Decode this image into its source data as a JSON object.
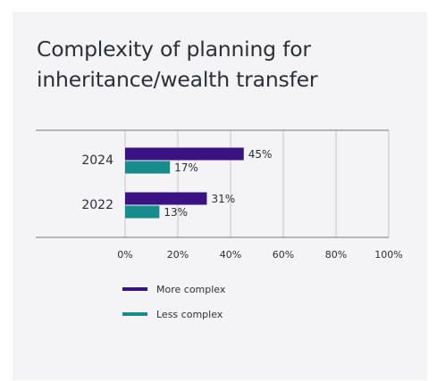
{
  "chart_data": {
    "type": "bar",
    "orientation": "horizontal",
    "title": "Complexity of planning for inheritance/wealth transfer",
    "categories": [
      "2024",
      "2022"
    ],
    "series": [
      {
        "name": "More complex",
        "values": [
          45,
          31
        ],
        "color": "#3a1283"
      },
      {
        "name": "Less complex",
        "values": [
          17,
          13
        ],
        "color": "#168c8c"
      }
    ],
    "data_labels": [
      [
        "45%",
        "31%"
      ],
      [
        "17%",
        "13%"
      ]
    ],
    "xlim": [
      0,
      100
    ],
    "xticks": [
      "0%",
      "20%",
      "40%",
      "60%",
      "80%",
      "100%"
    ],
    "grid": true,
    "legend": "bottom"
  }
}
